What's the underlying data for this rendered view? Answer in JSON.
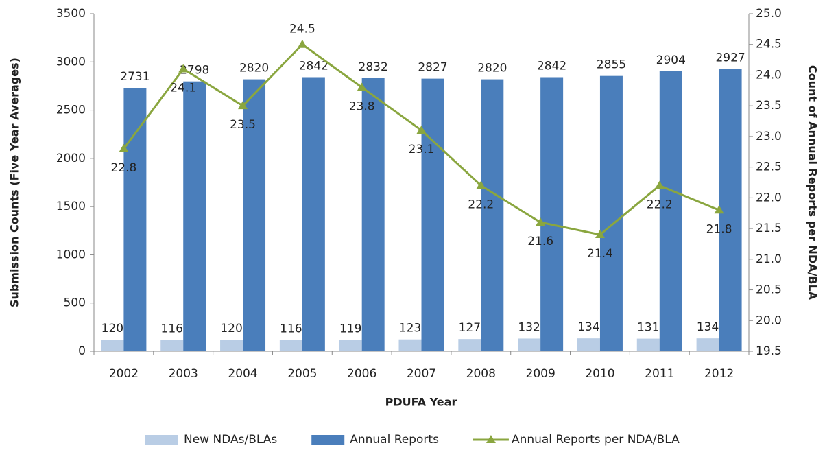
{
  "chart_data": {
    "type": "bar",
    "x_label": "PDUFA Year",
    "y_label": "Submission Counts (Five Year Averages)",
    "y2_label": "Count of Annual Reports per NDA/BLA",
    "categories": [
      "2002",
      "2003",
      "2004",
      "2005",
      "2006",
      "2007",
      "2008",
      "2009",
      "2010",
      "2011",
      "2012"
    ],
    "series": [
      {
        "name": "New NDAs/BLAs",
        "type": "bar",
        "color": "#b9cde5",
        "values": [
          120,
          116,
          120,
          116,
          119,
          123,
          127,
          132,
          134,
          131,
          134
        ]
      },
      {
        "name": "Annual Reports",
        "type": "bar",
        "color": "#4a7ebb",
        "values": [
          2731,
          2798,
          2820,
          2842,
          2832,
          2827,
          2820,
          2842,
          2855,
          2904,
          2927
        ]
      },
      {
        "name": "Annual Reports per NDA/BLA",
        "type": "line",
        "axis": "y2",
        "color": "#8aa63f",
        "values": [
          22.8,
          24.1,
          23.5,
          24.5,
          23.8,
          23.1,
          22.2,
          21.6,
          21.4,
          22.2,
          21.8
        ]
      }
    ],
    "ylim": [
      0,
      3500
    ],
    "yticks": [
      0,
      500,
      1000,
      1500,
      2000,
      2500,
      3000,
      3500
    ],
    "y2lim": [
      19.5,
      25
    ],
    "y2ticks": [
      19.5,
      {
        "value": 20,
        "label": "20.0"
      },
      20.5,
      {
        "value": 21,
        "label": "21.0"
      },
      21.5,
      {
        "value": 22,
        "label": "22.0"
      },
      22.5,
      {
        "value": 23,
        "label": "23.0"
      },
      23.5,
      {
        "value": 24,
        "label": "24.0"
      },
      24.5,
      {
        "value": 25,
        "label": "25.0"
      }
    ],
    "grid": false,
    "legend": "bottom"
  }
}
